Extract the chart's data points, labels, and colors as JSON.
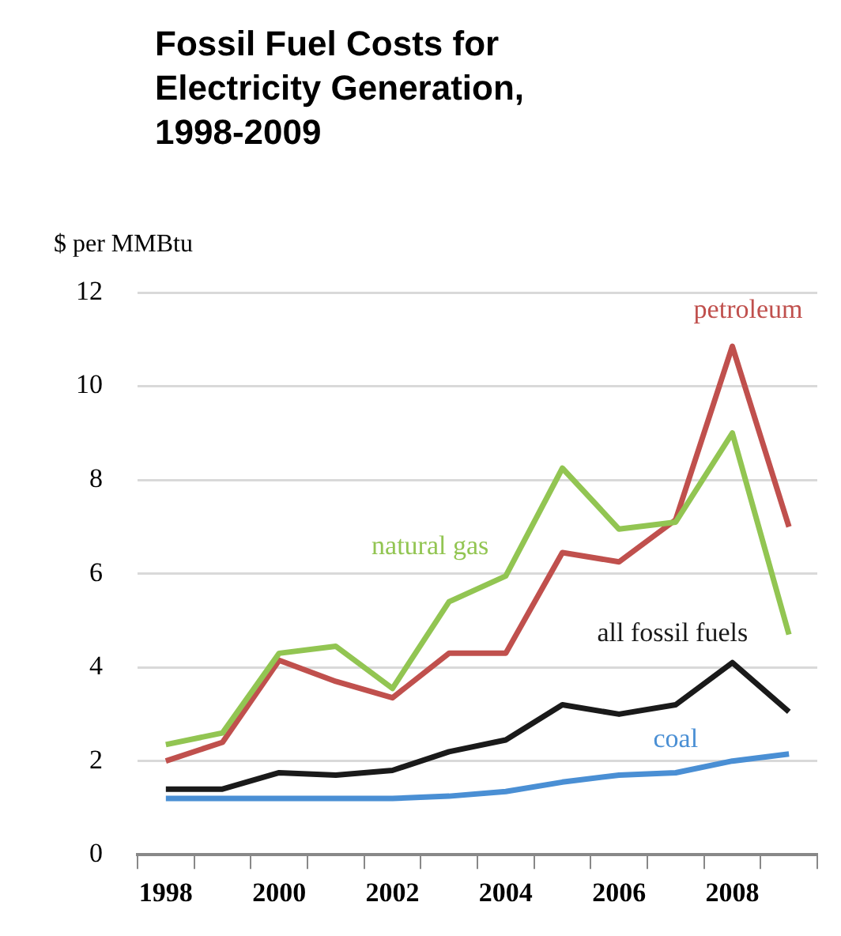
{
  "chart_data": {
    "type": "line",
    "title": "Fossil Fuel Costs for Electricity Generation, 1998-2009",
    "ylabel": "$ per MMBtu",
    "categories": [
      "1998",
      null,
      "2000",
      null,
      "2002",
      null,
      "2004",
      null,
      "2006",
      null,
      "2008",
      null
    ],
    "series": [
      {
        "name": "natural gas",
        "color": "#92c552",
        "values": [
          2.35,
          2.6,
          4.3,
          4.45,
          3.55,
          5.4,
          5.95,
          8.25,
          6.95,
          7.1,
          9.0,
          4.7
        ]
      },
      {
        "name": "petroleum",
        "color": "#c0504d",
        "values": [
          2.0,
          2.4,
          4.15,
          3.7,
          3.35,
          4.3,
          4.3,
          6.45,
          6.25,
          7.15,
          10.85,
          7.0
        ]
      },
      {
        "name": "all fossil fuels",
        "color": "#1a1a1a",
        "values": [
          1.4,
          1.4,
          1.75,
          1.7,
          1.8,
          2.2,
          2.45,
          3.2,
          3.0,
          3.2,
          4.1,
          3.05
        ]
      },
      {
        "name": "coal",
        "color": "#4a8fd4",
        "values": [
          1.2,
          1.2,
          1.2,
          1.2,
          1.2,
          1.25,
          1.35,
          1.55,
          1.7,
          1.75,
          2.0,
          2.15
        ]
      }
    ],
    "ylim": [
      0,
      12
    ],
    "yticks": [
      0,
      2,
      4,
      6,
      8,
      10,
      12
    ],
    "grid": "y",
    "legend": false,
    "marker": "none",
    "line_style": "solid"
  }
}
